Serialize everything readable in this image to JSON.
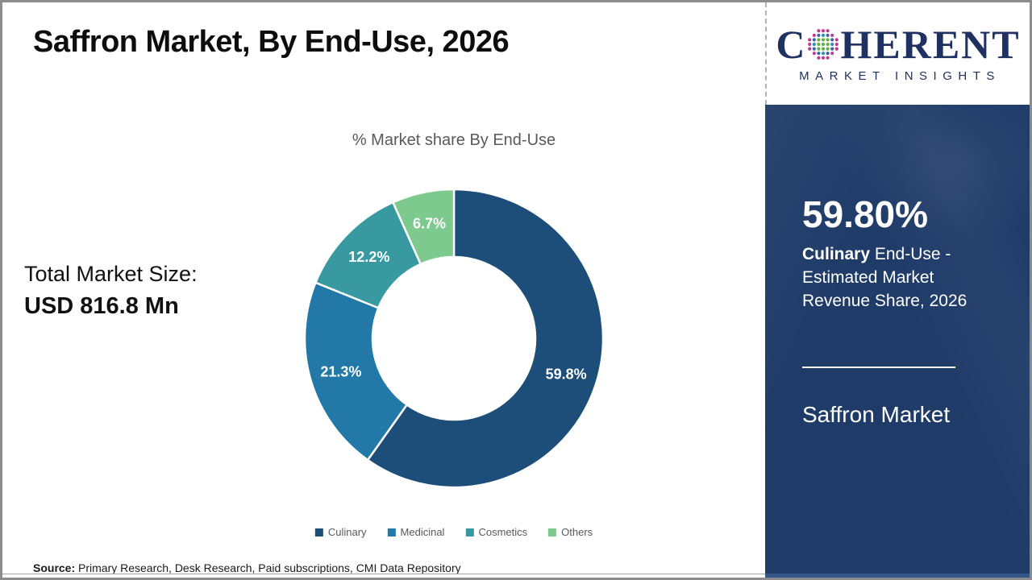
{
  "header": {
    "title": "Saffron Market, By End-Use, 2026"
  },
  "logo": {
    "c": "C",
    "rest": "HERENT",
    "tagline": "MARKET INSIGHTS",
    "text_color": "#1f3160",
    "globe_colors": {
      "edge": "#bf3a8e",
      "mid_a": "#2e93a6",
      "mid_b": "#3a66a8",
      "inner": "#63ae45"
    }
  },
  "left_panel": {
    "total_label": "Total Market Size:",
    "total_value": "USD 816.8 Mn"
  },
  "chart_data": {
    "type": "pie",
    "donut": true,
    "title": "% Market share By End-Use",
    "categories": [
      "Culinary",
      "Medicinal",
      "Cosmetics",
      "Others"
    ],
    "values": [
      59.8,
      21.3,
      12.2,
      6.7
    ],
    "labels": [
      "59.8%",
      "21.3%",
      "12.2%",
      "6.7%"
    ],
    "colors": [
      "#1c4e79",
      "#2278a7",
      "#389aa0",
      "#7dc98e"
    ],
    "start_angle_deg": 0,
    "direction": "clockwise",
    "legend_position": "bottom",
    "label_color": "#ffffff"
  },
  "sidebar": {
    "bg_color": "#1f3b68",
    "stat_value": "59.80%",
    "stat_label_bold": "Culinary",
    "stat_label_rest": " End-Use - Estimated Market Revenue Share, 2026",
    "market_name": "Saffron Market"
  },
  "footer": {
    "source_label": "Source:",
    "source_text": " Primary Research, Desk Research, Paid subscriptions, CMI Data Repository"
  }
}
